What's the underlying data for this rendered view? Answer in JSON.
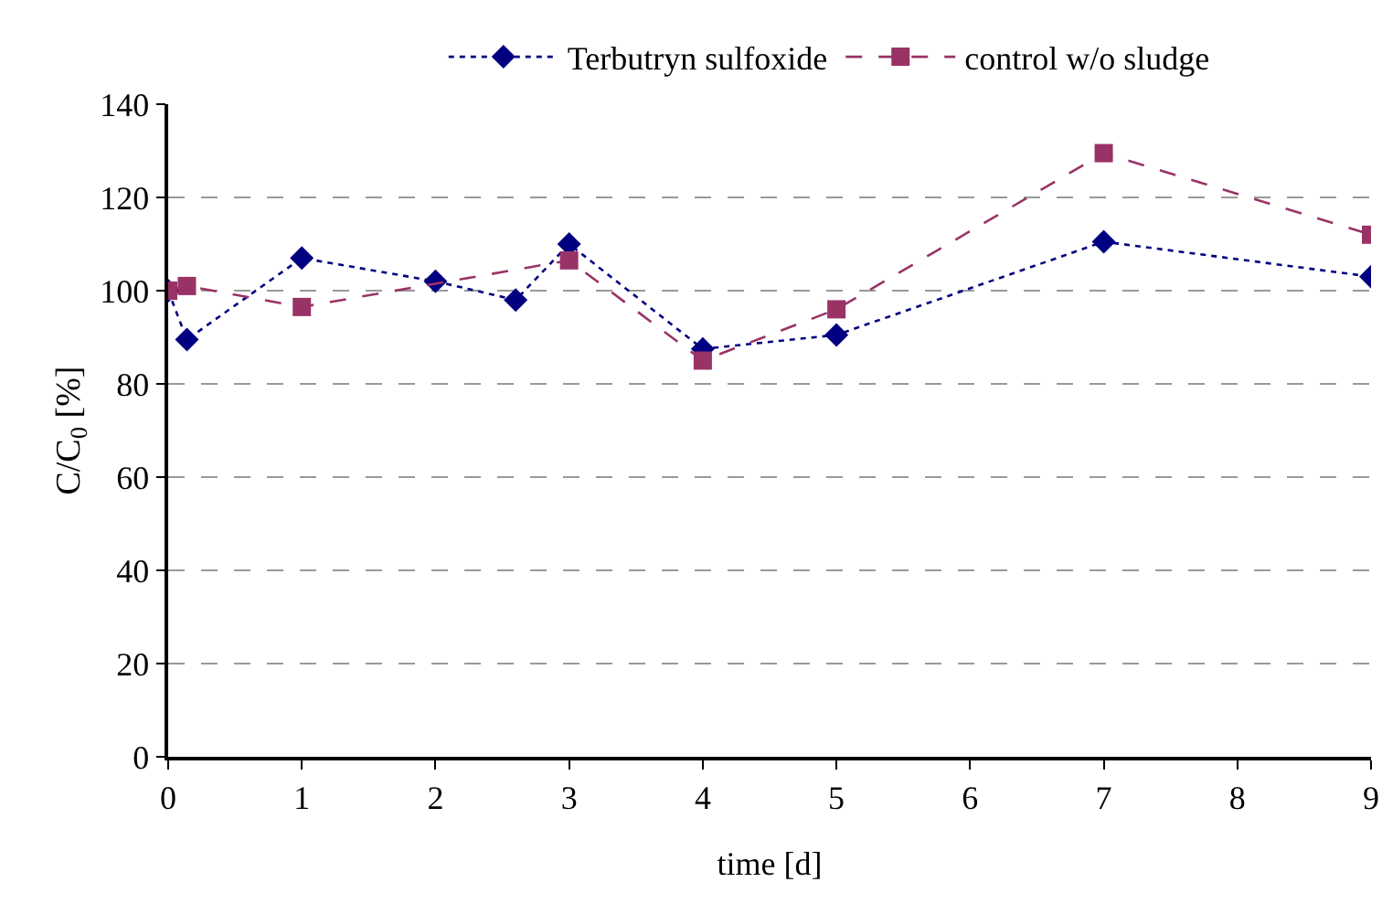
{
  "chart_data": {
    "type": "line",
    "xlabel": "time [d]",
    "ylabel": "C/C$_{0}$ [%]",
    "xlim": [
      0,
      9
    ],
    "xticks": [
      0,
      1,
      2,
      3,
      4,
      5,
      6,
      7,
      8,
      9
    ],
    "ylim": [
      0,
      140
    ],
    "yticks": [
      0,
      20,
      40,
      60,
      80,
      100,
      120,
      140
    ],
    "grid": "y",
    "legend": "top",
    "series": [
      {
        "name": "Terbutryn sulfoxide",
        "color": "#000080",
        "marker": "diamond",
        "line_style": "dotted",
        "x": [
          0,
          0.14,
          1,
          2,
          2.6,
          3,
          4,
          5,
          7,
          9
        ],
        "values": [
          100,
          89.5,
          107,
          102,
          98,
          110,
          87.5,
          90.5,
          110.5,
          103
        ]
      },
      {
        "name": "control w/o sludge",
        "color": "#993366",
        "marker": "square",
        "line_style": "dashed",
        "x": [
          0,
          0.14,
          1,
          3,
          4,
          5,
          7,
          9
        ],
        "values": [
          100,
          101,
          96.5,
          106.5,
          85,
          96,
          129.5,
          112
        ]
      }
    ]
  }
}
